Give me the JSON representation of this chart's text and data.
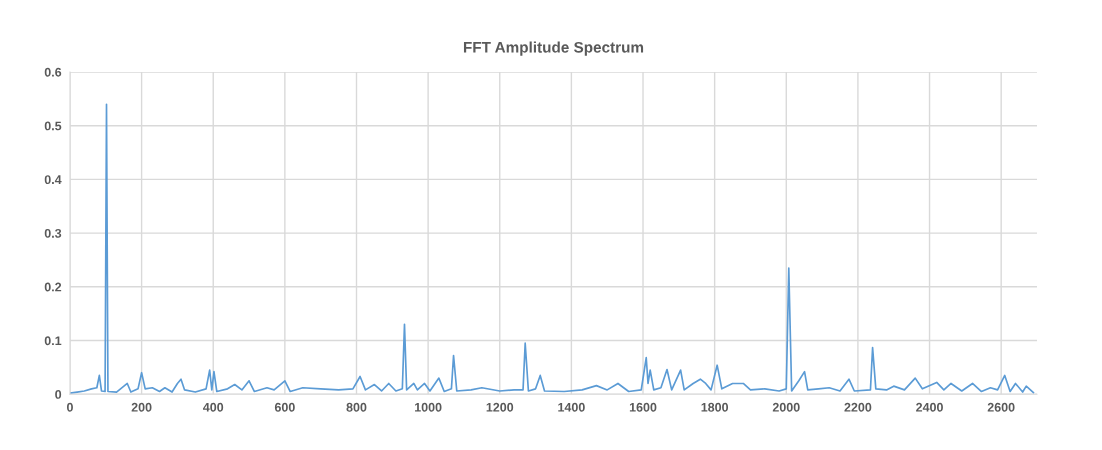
{
  "chart_data": {
    "type": "line",
    "title": "FFT Amplitude Spectrum",
    "x": [
      0,
      20,
      40,
      60,
      75,
      82,
      88,
      98,
      102,
      106,
      130,
      160,
      170,
      190,
      200,
      210,
      230,
      250,
      265,
      285,
      300,
      310,
      320,
      350,
      380,
      390,
      396,
      402,
      410,
      440,
      460,
      480,
      500,
      515,
      550,
      570,
      600,
      615,
      650,
      700,
      750,
      790,
      810,
      825,
      850,
      870,
      890,
      910,
      928,
      934,
      940,
      960,
      970,
      990,
      1005,
      1030,
      1045,
      1065,
      1071,
      1080,
      1120,
      1150,
      1200,
      1240,
      1265,
      1271,
      1280,
      1300,
      1313,
      1325,
      1380,
      1430,
      1470,
      1500,
      1530,
      1560,
      1595,
      1609,
      1614,
      1620,
      1630,
      1650,
      1667,
      1680,
      1705,
      1715,
      1740,
      1760,
      1775,
      1790,
      1807,
      1820,
      1850,
      1880,
      1900,
      1940,
      1980,
      2000,
      2007,
      2015,
      2035,
      2051,
      2060,
      2090,
      2120,
      2150,
      2175,
      2190,
      2235,
      2241,
      2250,
      2280,
      2300,
      2330,
      2360,
      2380,
      2420,
      2440,
      2460,
      2490,
      2520,
      2545,
      2570,
      2590,
      2610,
      2625,
      2640,
      2660,
      2670,
      2690
    ],
    "series": [
      {
        "color": "#5b9bd5",
        "values": [
          0.002,
          0.004,
          0.006,
          0.01,
          0.012,
          0.035,
          0.006,
          0.005,
          0.54,
          0.005,
          0.004,
          0.02,
          0.004,
          0.01,
          0.04,
          0.01,
          0.012,
          0.005,
          0.012,
          0.004,
          0.02,
          0.028,
          0.008,
          0.004,
          0.01,
          0.045,
          0.008,
          0.042,
          0.005,
          0.01,
          0.018,
          0.008,
          0.025,
          0.005,
          0.012,
          0.008,
          0.025,
          0.005,
          0.012,
          0.01,
          0.008,
          0.01,
          0.033,
          0.008,
          0.018,
          0.006,
          0.02,
          0.006,
          0.01,
          0.13,
          0.008,
          0.02,
          0.008,
          0.02,
          0.006,
          0.03,
          0.005,
          0.01,
          0.072,
          0.006,
          0.008,
          0.012,
          0.006,
          0.008,
          0.008,
          0.095,
          0.006,
          0.01,
          0.035,
          0.006,
          0.005,
          0.008,
          0.016,
          0.008,
          0.02,
          0.005,
          0.008,
          0.068,
          0.02,
          0.045,
          0.008,
          0.012,
          0.046,
          0.008,
          0.045,
          0.008,
          0.02,
          0.028,
          0.02,
          0.008,
          0.054,
          0.01,
          0.02,
          0.02,
          0.008,
          0.01,
          0.006,
          0.01,
          0.235,
          0.006,
          0.025,
          0.042,
          0.008,
          0.01,
          0.012,
          0.006,
          0.028,
          0.006,
          0.008,
          0.087,
          0.01,
          0.008,
          0.015,
          0.008,
          0.03,
          0.01,
          0.022,
          0.008,
          0.02,
          0.006,
          0.02,
          0.005,
          0.012,
          0.008,
          0.035,
          0.005,
          0.02,
          0.004,
          0.015,
          0.003
        ]
      }
    ],
    "xlim": [
      0,
      2700
    ],
    "xticks": [
      0,
      200,
      400,
      600,
      800,
      1000,
      1200,
      1400,
      1600,
      1800,
      2000,
      2200,
      2400,
      2600
    ],
    "ylim": [
      0,
      0.6
    ],
    "yticks": [
      0,
      0.1,
      0.2,
      0.3,
      0.4,
      0.5,
      0.6
    ],
    "grid": true,
    "legend": false
  }
}
